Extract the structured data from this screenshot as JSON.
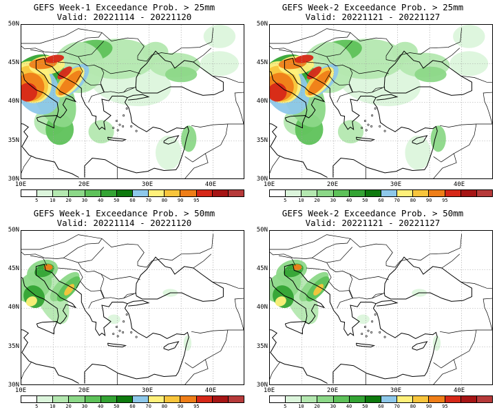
{
  "colors": {
    "levels": [
      "#ffffff",
      "#dcf5dc",
      "#b4e8b0",
      "#8cd888",
      "#5ec25a",
      "#34a434",
      "#0e7a0e",
      "#8ec8ea",
      "#fff07a",
      "#f8c53c",
      "#ef7e18",
      "#d62818",
      "#a61515",
      "#b63a3a"
    ],
    "coast": "#000000",
    "grid": "#a0a0a0"
  },
  "colorbar": {
    "labels": [
      "5",
      "10",
      "20",
      "30",
      "40",
      "50",
      "60",
      "70",
      "80",
      "90",
      "95"
    ]
  },
  "axes": {
    "lat_labels": [
      "50N",
      "45N",
      "40N",
      "35N",
      "30N"
    ],
    "lon_labels": [
      "10E",
      "20E",
      "30E",
      "40E"
    ]
  },
  "panels": [
    {
      "title": "GEFS Week-1 Exceedance Prob. > 25mm",
      "valid": "Valid: 20221114 - 20221120",
      "threshold_mm": 25,
      "week": 1
    },
    {
      "title": "GEFS Week-2 Exceedance Prob. > 25mm",
      "valid": "Valid: 20221121 - 20221127",
      "threshold_mm": 25,
      "week": 2
    },
    {
      "title": "GEFS Week-1 Exceedance Prob. > 50mm",
      "valid": "Valid: 20221114 - 20221120",
      "threshold_mm": 50,
      "week": 1
    },
    {
      "title": "GEFS Week-2 Exceedance Prob. > 50mm",
      "valid": "Valid: 20221121 - 20221127",
      "threshold_mm": 50,
      "week": 2
    }
  ]
}
